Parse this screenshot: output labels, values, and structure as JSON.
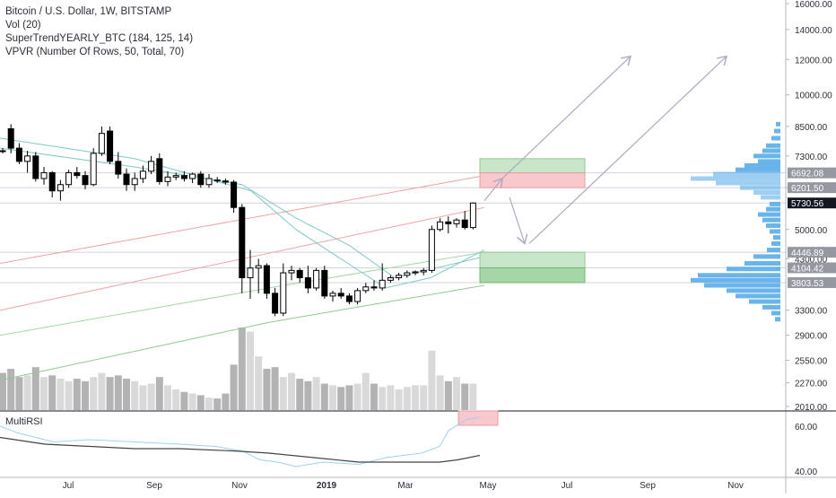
{
  "legend": {
    "title": "Bitcoin / U.S. Dollar, 1W, BITSTAMP",
    "vol": "Vol (20)",
    "supertrend": "SuperTrendYEARLY_BTC (184, 125, 14)",
    "vpvr": "VPVR (Number Of Rows, 50, Total, 70)",
    "rsi": "MultiRSI"
  },
  "colors": {
    "up": "#ffffff",
    "down": "#000000",
    "volume": "#c0c0c0",
    "vpvr": "#4fa8e8",
    "green_zone": "#c8e6c9",
    "red_zone": "#f8c8cc",
    "dark_green_zone": "#a5d6a7",
    "arrows": "#b0a8c0"
  },
  "chart_data": {
    "type": "candlestick",
    "ylim": [
      2010,
      16000
    ],
    "scale": "log",
    "price_ticks": [
      16000,
      14000,
      12000,
      10000,
      8500,
      7300,
      6200,
      5000,
      4300,
      3300,
      2900,
      2550,
      2270,
      2010
    ],
    "price_tick_labels": [
      "16000.00",
      "14000.00",
      "12000.00",
      "10000.00",
      "8500.00",
      "7300.00",
      "6200.00",
      "5000.00",
      "4300.00",
      "3300.00",
      "2900.00",
      "2550.00",
      "2270.00",
      "2010.00"
    ],
    "price_badges": [
      {
        "value": 6692.08,
        "label": "6692.08"
      },
      {
        "value": 6201.5,
        "label": "6201.50"
      },
      {
        "value": 5730.56,
        "label": "5730.56",
        "current": true
      },
      {
        "value": 4446.89,
        "label": "4446.89"
      },
      {
        "value": 4104.42,
        "label": "4104.42"
      },
      {
        "value": 3803.53,
        "label": "3803.53"
      }
    ],
    "x_labels": [
      "Jul",
      "Sep",
      "Nov",
      "2019",
      "Mar",
      "May",
      "Jul",
      "Sep",
      "Nov"
    ],
    "rsi_ticks": [
      "60.00",
      "40.00"
    ],
    "candles": [
      {
        "o": 7500,
        "h": 7600,
        "l": 7400,
        "c": 7480
      },
      {
        "o": 8400,
        "h": 8600,
        "l": 7400,
        "c": 7600
      },
      {
        "o": 7600,
        "h": 7800,
        "l": 7000,
        "c": 7100
      },
      {
        "o": 7100,
        "h": 7500,
        "l": 6700,
        "c": 7300
      },
      {
        "o": 7300,
        "h": 7450,
        "l": 6400,
        "c": 6500
      },
      {
        "o": 6500,
        "h": 6900,
        "l": 6300,
        "c": 6700
      },
      {
        "o": 6700,
        "h": 6750,
        "l": 5900,
        "c": 6100
      },
      {
        "o": 6100,
        "h": 6450,
        "l": 5800,
        "c": 6300
      },
      {
        "o": 6300,
        "h": 6800,
        "l": 6200,
        "c": 6700
      },
      {
        "o": 6700,
        "h": 6900,
        "l": 6500,
        "c": 6600
      },
      {
        "o": 6600,
        "h": 6750,
        "l": 6150,
        "c": 6300
      },
      {
        "o": 6300,
        "h": 7600,
        "l": 6250,
        "c": 7400
      },
      {
        "o": 7400,
        "h": 8500,
        "l": 7300,
        "c": 8200
      },
      {
        "o": 8300,
        "h": 8500,
        "l": 7000,
        "c": 7100
      },
      {
        "o": 7100,
        "h": 7450,
        "l": 6500,
        "c": 6650
      },
      {
        "o": 6650,
        "h": 6850,
        "l": 6100,
        "c": 6300
      },
      {
        "o": 6300,
        "h": 6700,
        "l": 6100,
        "c": 6500
      },
      {
        "o": 6500,
        "h": 6950,
        "l": 6350,
        "c": 6750
      },
      {
        "o": 6750,
        "h": 7300,
        "l": 6650,
        "c": 7100
      },
      {
        "o": 7200,
        "h": 7400,
        "l": 6300,
        "c": 6400
      },
      {
        "o": 6400,
        "h": 6750,
        "l": 6250,
        "c": 6550
      },
      {
        "o": 6550,
        "h": 6700,
        "l": 6450,
        "c": 6600
      },
      {
        "o": 6600,
        "h": 6750,
        "l": 6400,
        "c": 6500
      },
      {
        "o": 6500,
        "h": 6700,
        "l": 6350,
        "c": 6650
      },
      {
        "o": 6650,
        "h": 6750,
        "l": 6200,
        "c": 6300
      },
      {
        "o": 6300,
        "h": 6650,
        "l": 6200,
        "c": 6500
      },
      {
        "o": 6450,
        "h": 6550,
        "l": 6350,
        "c": 6420
      },
      {
        "o": 6420,
        "h": 6500,
        "l": 6300,
        "c": 6380
      },
      {
        "o": 6380,
        "h": 6450,
        "l": 5450,
        "c": 5600
      },
      {
        "o": 5600,
        "h": 5700,
        "l": 3600,
        "c": 3900
      },
      {
        "o": 3900,
        "h": 4500,
        "l": 3500,
        "c": 4100
      },
      {
        "o": 4100,
        "h": 4300,
        "l": 3600,
        "c": 4150
      },
      {
        "o": 4150,
        "h": 4200,
        "l": 3500,
        "c": 3600
      },
      {
        "o": 3600,
        "h": 3700,
        "l": 3200,
        "c": 3250
      },
      {
        "o": 3250,
        "h": 4200,
        "l": 3200,
        "c": 4000
      },
      {
        "o": 4000,
        "h": 4150,
        "l": 3850,
        "c": 4050
      },
      {
        "o": 4050,
        "h": 4100,
        "l": 3800,
        "c": 3900
      },
      {
        "o": 3900,
        "h": 4150,
        "l": 3600,
        "c": 3700
      },
      {
        "o": 3700,
        "h": 4100,
        "l": 3650,
        "c": 4050
      },
      {
        "o": 4050,
        "h": 4150,
        "l": 3500,
        "c": 3550
      },
      {
        "o": 3550,
        "h": 3650,
        "l": 3450,
        "c": 3600
      },
      {
        "o": 3600,
        "h": 3700,
        "l": 3500,
        "c": 3550
      },
      {
        "o": 3550,
        "h": 3600,
        "l": 3400,
        "c": 3450
      },
      {
        "o": 3450,
        "h": 3700,
        "l": 3400,
        "c": 3650
      },
      {
        "o": 3650,
        "h": 3800,
        "l": 3600,
        "c": 3720
      },
      {
        "o": 3720,
        "h": 3850,
        "l": 3650,
        "c": 3700
      },
      {
        "o": 3700,
        "h": 4200,
        "l": 3650,
        "c": 3850
      },
      {
        "o": 3850,
        "h": 3950,
        "l": 3800,
        "c": 3900
      },
      {
        "o": 3900,
        "h": 4000,
        "l": 3850,
        "c": 3950
      },
      {
        "o": 3950,
        "h": 4050,
        "l": 3900,
        "c": 4000
      },
      {
        "o": 4000,
        "h": 4050,
        "l": 3950,
        "c": 4020
      },
      {
        "o": 4020,
        "h": 4100,
        "l": 3950,
        "c": 4050
      },
      {
        "o": 4050,
        "h": 5100,
        "l": 4000,
        "c": 5000
      },
      {
        "o": 5000,
        "h": 5300,
        "l": 4950,
        "c": 5200
      },
      {
        "o": 5200,
        "h": 5350,
        "l": 4900,
        "c": 5150
      },
      {
        "o": 5150,
        "h": 5300,
        "l": 5050,
        "c": 5250
      },
      {
        "o": 5250,
        "h": 5500,
        "l": 5000,
        "c": 5050
      },
      {
        "o": 5050,
        "h": 5750,
        "l": 5000,
        "c": 5730
      }
    ],
    "volumes": [
      0.45,
      0.5,
      0.4,
      0.42,
      0.52,
      0.4,
      0.42,
      0.38,
      0.35,
      0.38,
      0.35,
      0.4,
      0.45,
      0.4,
      0.42,
      0.38,
      0.35,
      0.3,
      0.32,
      0.4,
      0.3,
      0.25,
      0.22,
      0.2,
      0.18,
      0.15,
      0.14,
      0.2,
      0.55,
      1.0,
      0.95,
      0.65,
      0.5,
      0.52,
      0.4,
      0.45,
      0.38,
      0.35,
      0.4,
      0.32,
      0.3,
      0.28,
      0.3,
      0.32,
      0.45,
      0.32,
      0.28,
      0.3,
      0.25,
      0.28,
      0.3,
      0.3,
      0.72,
      0.42,
      0.35,
      0.4,
      0.32,
      0.32
    ],
    "vpvr": [
      {
        "price": 8600,
        "w": 0.05
      },
      {
        "price": 8300,
        "w": 0.07
      },
      {
        "price": 8000,
        "w": 0.1
      },
      {
        "price": 7700,
        "w": 0.16
      },
      {
        "price": 7500,
        "w": 0.2
      },
      {
        "price": 7300,
        "w": 0.3
      },
      {
        "price": 7100,
        "w": 0.25
      },
      {
        "price": 6950,
        "w": 0.4
      },
      {
        "price": 6800,
        "w": 0.5
      },
      {
        "price": 6650,
        "w": 0.75
      },
      {
        "price": 6500,
        "w": 1.0
      },
      {
        "price": 6350,
        "w": 0.72
      },
      {
        "price": 6200,
        "w": 0.45
      },
      {
        "price": 6050,
        "w": 0.3
      },
      {
        "price": 5900,
        "w": 0.22
      },
      {
        "price": 5700,
        "w": 0.12
      },
      {
        "price": 5550,
        "w": 0.16
      },
      {
        "price": 5400,
        "w": 0.25
      },
      {
        "price": 5250,
        "w": 0.2
      },
      {
        "price": 5100,
        "w": 0.16
      },
      {
        "price": 4950,
        "w": 0.12
      },
      {
        "price": 4800,
        "w": 0.08
      },
      {
        "price": 4650,
        "w": 0.1
      },
      {
        "price": 4500,
        "w": 0.15
      },
      {
        "price": 4350,
        "w": 0.3
      },
      {
        "price": 4200,
        "w": 0.4
      },
      {
        "price": 4080,
        "w": 0.6
      },
      {
        "price": 3950,
        "w": 0.92
      },
      {
        "price": 3850,
        "w": 1.0
      },
      {
        "price": 3750,
        "w": 0.85
      },
      {
        "price": 3650,
        "w": 0.6
      },
      {
        "price": 3550,
        "w": 0.5
      },
      {
        "price": 3450,
        "w": 0.35
      },
      {
        "price": 3350,
        "w": 0.2
      },
      {
        "price": 3250,
        "w": 0.1
      },
      {
        "price": 3150,
        "w": 0.06
      }
    ],
    "zones": [
      {
        "from": 6692.08,
        "to": 7200,
        "color": "green"
      },
      {
        "from": 6201.5,
        "to": 6692.08,
        "color": "red"
      },
      {
        "from": 4104.42,
        "to": 4446.89,
        "color": "green"
      },
      {
        "from": 3803.53,
        "to": 4104.42,
        "color": "dark_green"
      }
    ]
  }
}
